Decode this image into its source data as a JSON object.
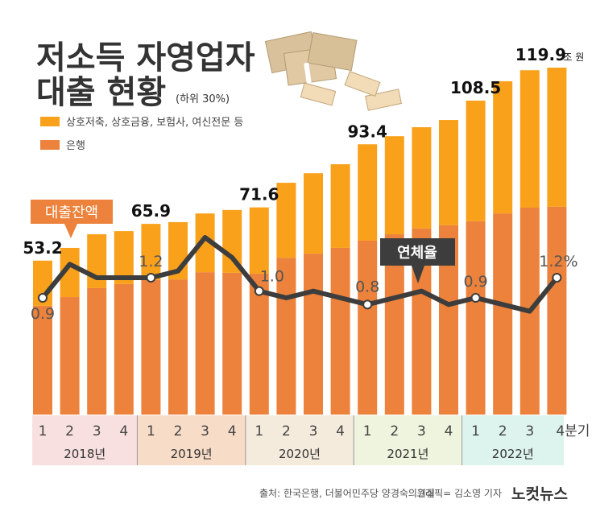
{
  "header": {
    "title_line1": "저소득 자영업자",
    "title_line2": "대출 현황",
    "title_note": "(하위 30%)"
  },
  "footer": {
    "source": "출처: 한국은행, 더불어민주당 양경숙의원실",
    "credit": "그래픽= 김소영 기자",
    "logo": "노컷뉴스"
  },
  "callouts": {
    "balance": "대출잔액",
    "delinquency": "연체율"
  },
  "colors": {
    "nonbank": "#f9a11b",
    "bank": "#ec823b",
    "line": "#3d3d3d",
    "band_2018": "#f8e0e0",
    "band_2019": "#f7dcc8",
    "band_2020": "#f5ebdd",
    "band_2021": "#eef4dd",
    "band_2022": "#ddf3ee"
  },
  "chart_data": {
    "type": "bar",
    "stacked": true,
    "quarter_labels": [
      "1",
      "2",
      "3",
      "4",
      "1",
      "2",
      "3",
      "4",
      "1",
      "2",
      "3",
      "4",
      "1",
      "2",
      "3",
      "4",
      "1",
      "2",
      "3",
      "4분기"
    ],
    "years": [
      "2018년",
      "2019년",
      "2020년",
      "2021년",
      "2022년"
    ],
    "series": [
      {
        "name": "은행",
        "values": [
          37.6,
          40.6,
          43.7,
          45.1,
          46.5,
          46.7,
          49.2,
          49.0,
          48.7,
          54.2,
          55.6,
          57.6,
          60.1,
          62.3,
          64.3,
          65.4,
          66.8,
          69.5,
          71.5,
          71.8
        ]
      },
      {
        "name": "상호저축, 상호금융, 보험사, 여신전문 등",
        "values": [
          15.6,
          17.0,
          18.6,
          18.3,
          19.4,
          19.8,
          20.3,
          21.7,
          22.9,
          25.9,
          27.8,
          28.9,
          33.3,
          33.9,
          35.0,
          36.4,
          41.7,
          45.7,
          47.5,
          48.1
        ]
      }
    ],
    "totals": [
      53.2,
      57.6,
      62.3,
      63.4,
      65.9,
      66.5,
      69.5,
      70.7,
      71.6,
      80.1,
      83.4,
      86.5,
      93.4,
      96.2,
      99.3,
      101.8,
      108.5,
      115.2,
      119.0,
      119.9
    ],
    "total_labels": [
      {
        "index": 0,
        "text": "53.2"
      },
      {
        "index": 4,
        "text": "65.9"
      },
      {
        "index": 8,
        "text": "71.6"
      },
      {
        "index": 12,
        "text": "93.4"
      },
      {
        "index": 16,
        "text": "108.5"
      },
      {
        "index": 19,
        "text": "119.9"
      }
    ],
    "total_unit": "조 원",
    "ylim": [
      0,
      120
    ],
    "line_series": {
      "name": "연체율",
      "values": [
        0.9,
        1.4,
        1.2,
        1.2,
        1.2,
        1.3,
        1.8,
        1.5,
        1.0,
        0.9,
        1.0,
        0.9,
        0.8,
        0.9,
        1.0,
        0.8,
        0.9,
        0.8,
        0.7,
        1.2
      ],
      "labels": [
        {
          "index": 0,
          "text": "0.9"
        },
        {
          "index": 4,
          "text": "1.2"
        },
        {
          "index": 8,
          "text": "1.0"
        },
        {
          "index": 12,
          "text": "0.8"
        },
        {
          "index": 16,
          "text": "0.9"
        },
        {
          "index": 19,
          "text": "1.2%"
        }
      ]
    },
    "legend": {
      "placement": "top-left"
    },
    "grid": false
  }
}
